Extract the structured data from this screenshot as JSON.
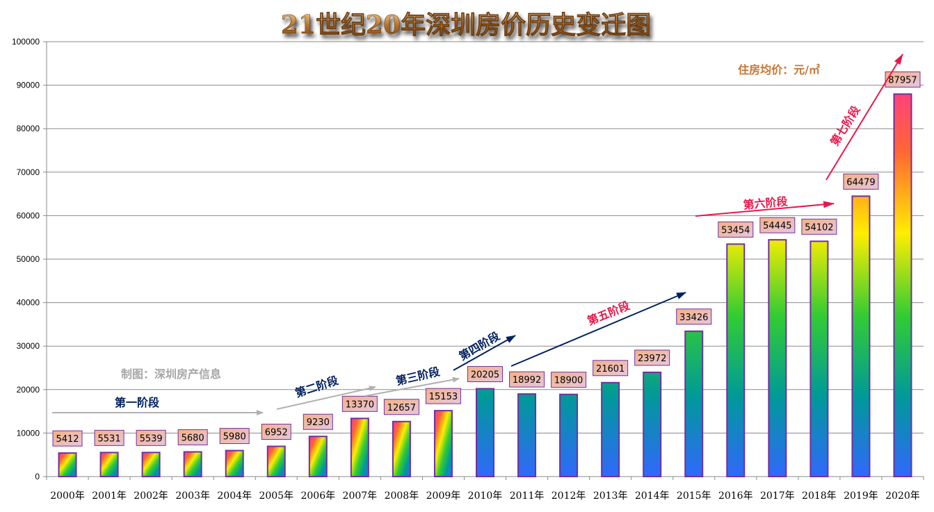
{
  "chart_data": {
    "type": "bar",
    "title": "21世纪20年深圳房价历史变迁图",
    "unit_label": "住房均价：元/㎡",
    "credit": "制图：深圳房产信息",
    "categories": [
      "2000年",
      "2001年",
      "2002年",
      "2003年",
      "2004年",
      "2005年",
      "2006年",
      "2007年",
      "2008年",
      "2009年",
      "2010年",
      "2011年",
      "2012年",
      "2013年",
      "2014年",
      "2015年",
      "2016年",
      "2017年",
      "2018年",
      "2019年",
      "2020年"
    ],
    "values": [
      5412,
      5531,
      5539,
      5680,
      5980,
      6952,
      9230,
      13370,
      12657,
      15153,
      20205,
      18992,
      18900,
      21601,
      23972,
      33426,
      53454,
      54445,
      54102,
      64479,
      87957
    ],
    "ylim": [
      0,
      100000
    ],
    "yticks": [
      0,
      10000,
      20000,
      30000,
      40000,
      50000,
      60000,
      70000,
      80000,
      90000,
      100000
    ],
    "grid": true,
    "bar_gradient": [
      "#ff3399",
      "#ff6633",
      "#ffee00",
      "#33cc33",
      "#009999",
      "#3366ff"
    ],
    "bar_border": "#7030a0",
    "label_fill": [
      "#f4b183",
      "#e6c6dd"
    ],
    "stages": [
      {
        "label": "第一阶段",
        "text_color": "#002060",
        "arrow_color": "#b0b0b0"
      },
      {
        "label": "第二阶段",
        "text_color": "#002060",
        "arrow_color": "#b0b0b0"
      },
      {
        "label": "第三阶段",
        "text_color": "#002060",
        "arrow_color": "#b0b0b0"
      },
      {
        "label": "第四阶段",
        "text_color": "#002060",
        "arrow_color": "#002060"
      },
      {
        "label": "第五阶段",
        "text_color": "#e8174a",
        "arrow_color": "#002060"
      },
      {
        "label": "第六阶段",
        "text_color": "#e8174a",
        "arrow_color": "#e8174a"
      },
      {
        "label": "第七阶段",
        "text_color": "#e8174a",
        "arrow_color": "#e8174a"
      }
    ],
    "colors": {
      "title": "#b8732e",
      "unit_label": "#c87533",
      "credit": "#a6a6a6"
    }
  }
}
